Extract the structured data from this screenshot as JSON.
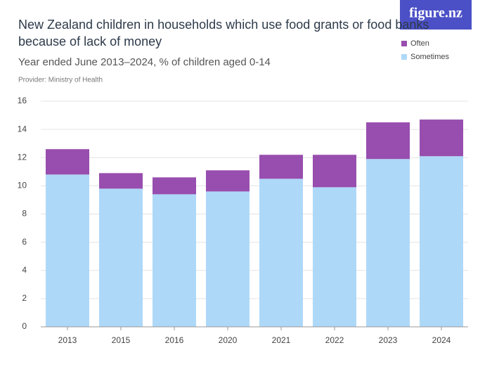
{
  "logo": "figure.nz",
  "chart_data": {
    "type": "stacked_bar",
    "title": "New Zealand children in households which use food grants or food banks because of lack of money",
    "subtitle": "Year ended June 2013–2024, % of children aged 0-14",
    "source": "Provider: Ministry of Health",
    "categories": [
      "2013",
      "2015",
      "2016",
      "2020",
      "2021",
      "2022",
      "2023",
      "2024"
    ],
    "series": [
      {
        "name": "Sometimes",
        "color": "#aed8f8",
        "values": [
          10.8,
          9.8,
          9.4,
          9.6,
          10.5,
          9.9,
          11.9,
          12.1
        ]
      },
      {
        "name": "Often",
        "color": "#984eae",
        "values": [
          1.8,
          1.1,
          1.2,
          1.5,
          1.7,
          2.3,
          2.6,
          2.6
        ]
      }
    ],
    "ylim": [
      0,
      16
    ],
    "yticks": [
      0,
      2,
      4,
      6,
      8,
      10,
      12,
      14,
      16
    ],
    "grid": true
  }
}
